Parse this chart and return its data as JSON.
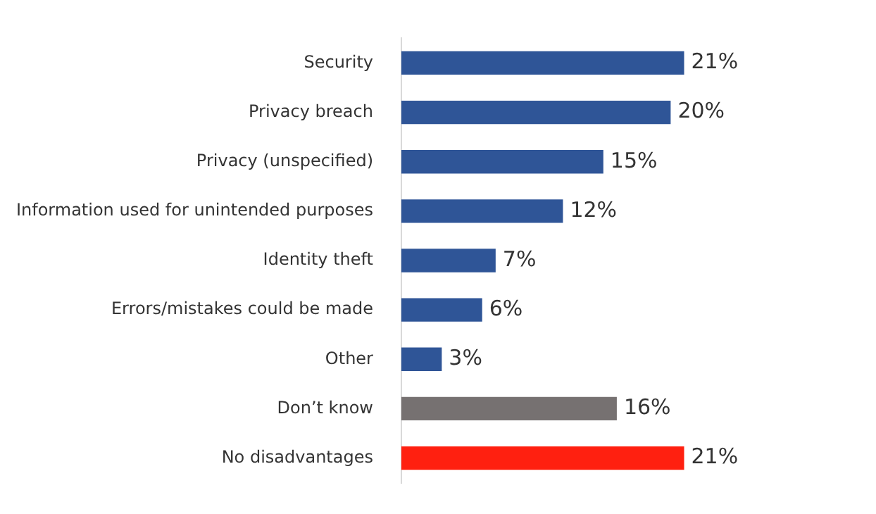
{
  "chart_data": {
    "type": "bar",
    "orientation": "horizontal",
    "categories": [
      "Security",
      "Privacy breach",
      "Privacy (unspecified)",
      "Information used for unintended purposes",
      "Identity theft",
      "Errors/mistakes could be made",
      "Other",
      "Don’t know",
      "No disadvantages"
    ],
    "values": [
      21,
      20,
      15,
      12,
      7,
      6,
      3,
      16,
      21
    ],
    "colors": [
      "#2f5597",
      "#2f5597",
      "#2f5597",
      "#2f5597",
      "#2f5597",
      "#2f5597",
      "#2f5597",
      "#767171",
      "#ff2010"
    ],
    "value_labels": [
      "21%",
      "20%",
      "15%",
      "12%",
      "7%",
      "6%",
      "3%",
      "16%",
      "21%"
    ],
    "tick_labels": "y",
    "grid": false,
    "legend": false
  }
}
